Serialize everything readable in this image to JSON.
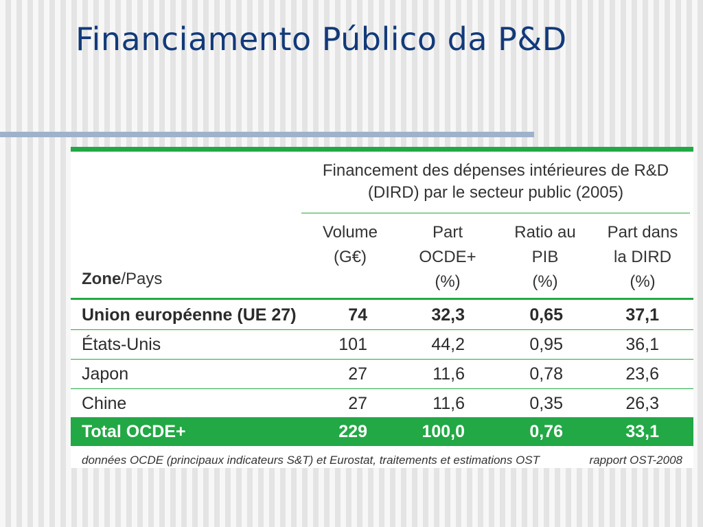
{
  "slide": {
    "title": "Financiamento Público da P&D"
  },
  "colors": {
    "title": "#123a7a",
    "accent_green": "#22a845",
    "title_rule": "#9fb2cc"
  },
  "table": {
    "group_header": [
      "Financement des dépenses intérieures de R&D",
      "(DIRD) par le secteur public (2005)"
    ],
    "zone_header_bold": "Zone",
    "zone_header_rest": "/Pays",
    "columns": [
      [
        "Volume",
        "(G€)"
      ],
      [
        "Part",
        "OCDE+",
        "(%)"
      ],
      [
        "Ratio au",
        "PIB",
        "(%)"
      ],
      [
        "Part dans",
        "la DIRD",
        "(%)"
      ]
    ],
    "rows": [
      {
        "label": "Union européenne (UE 27)",
        "values": [
          "74",
          "32,3",
          "0,65",
          "37,1"
        ]
      },
      {
        "label": "États-Unis",
        "values": [
          "101",
          "44,2",
          "0,95",
          "36,1"
        ]
      },
      {
        "label": "Japon",
        "values": [
          "27",
          "11,6",
          "0,78",
          "23,6"
        ]
      },
      {
        "label": "Chine",
        "values": [
          "27",
          "11,6",
          "0,35",
          "26,3"
        ]
      },
      {
        "label": "Total OCDE+",
        "values": [
          "229",
          "100,0",
          "0,76",
          "33,1"
        ]
      }
    ],
    "source_note": "données OCDE (principaux indicateurs S&T) et Eurostat, traitements et estimations OST",
    "report_note": "rapport OST-2008"
  }
}
